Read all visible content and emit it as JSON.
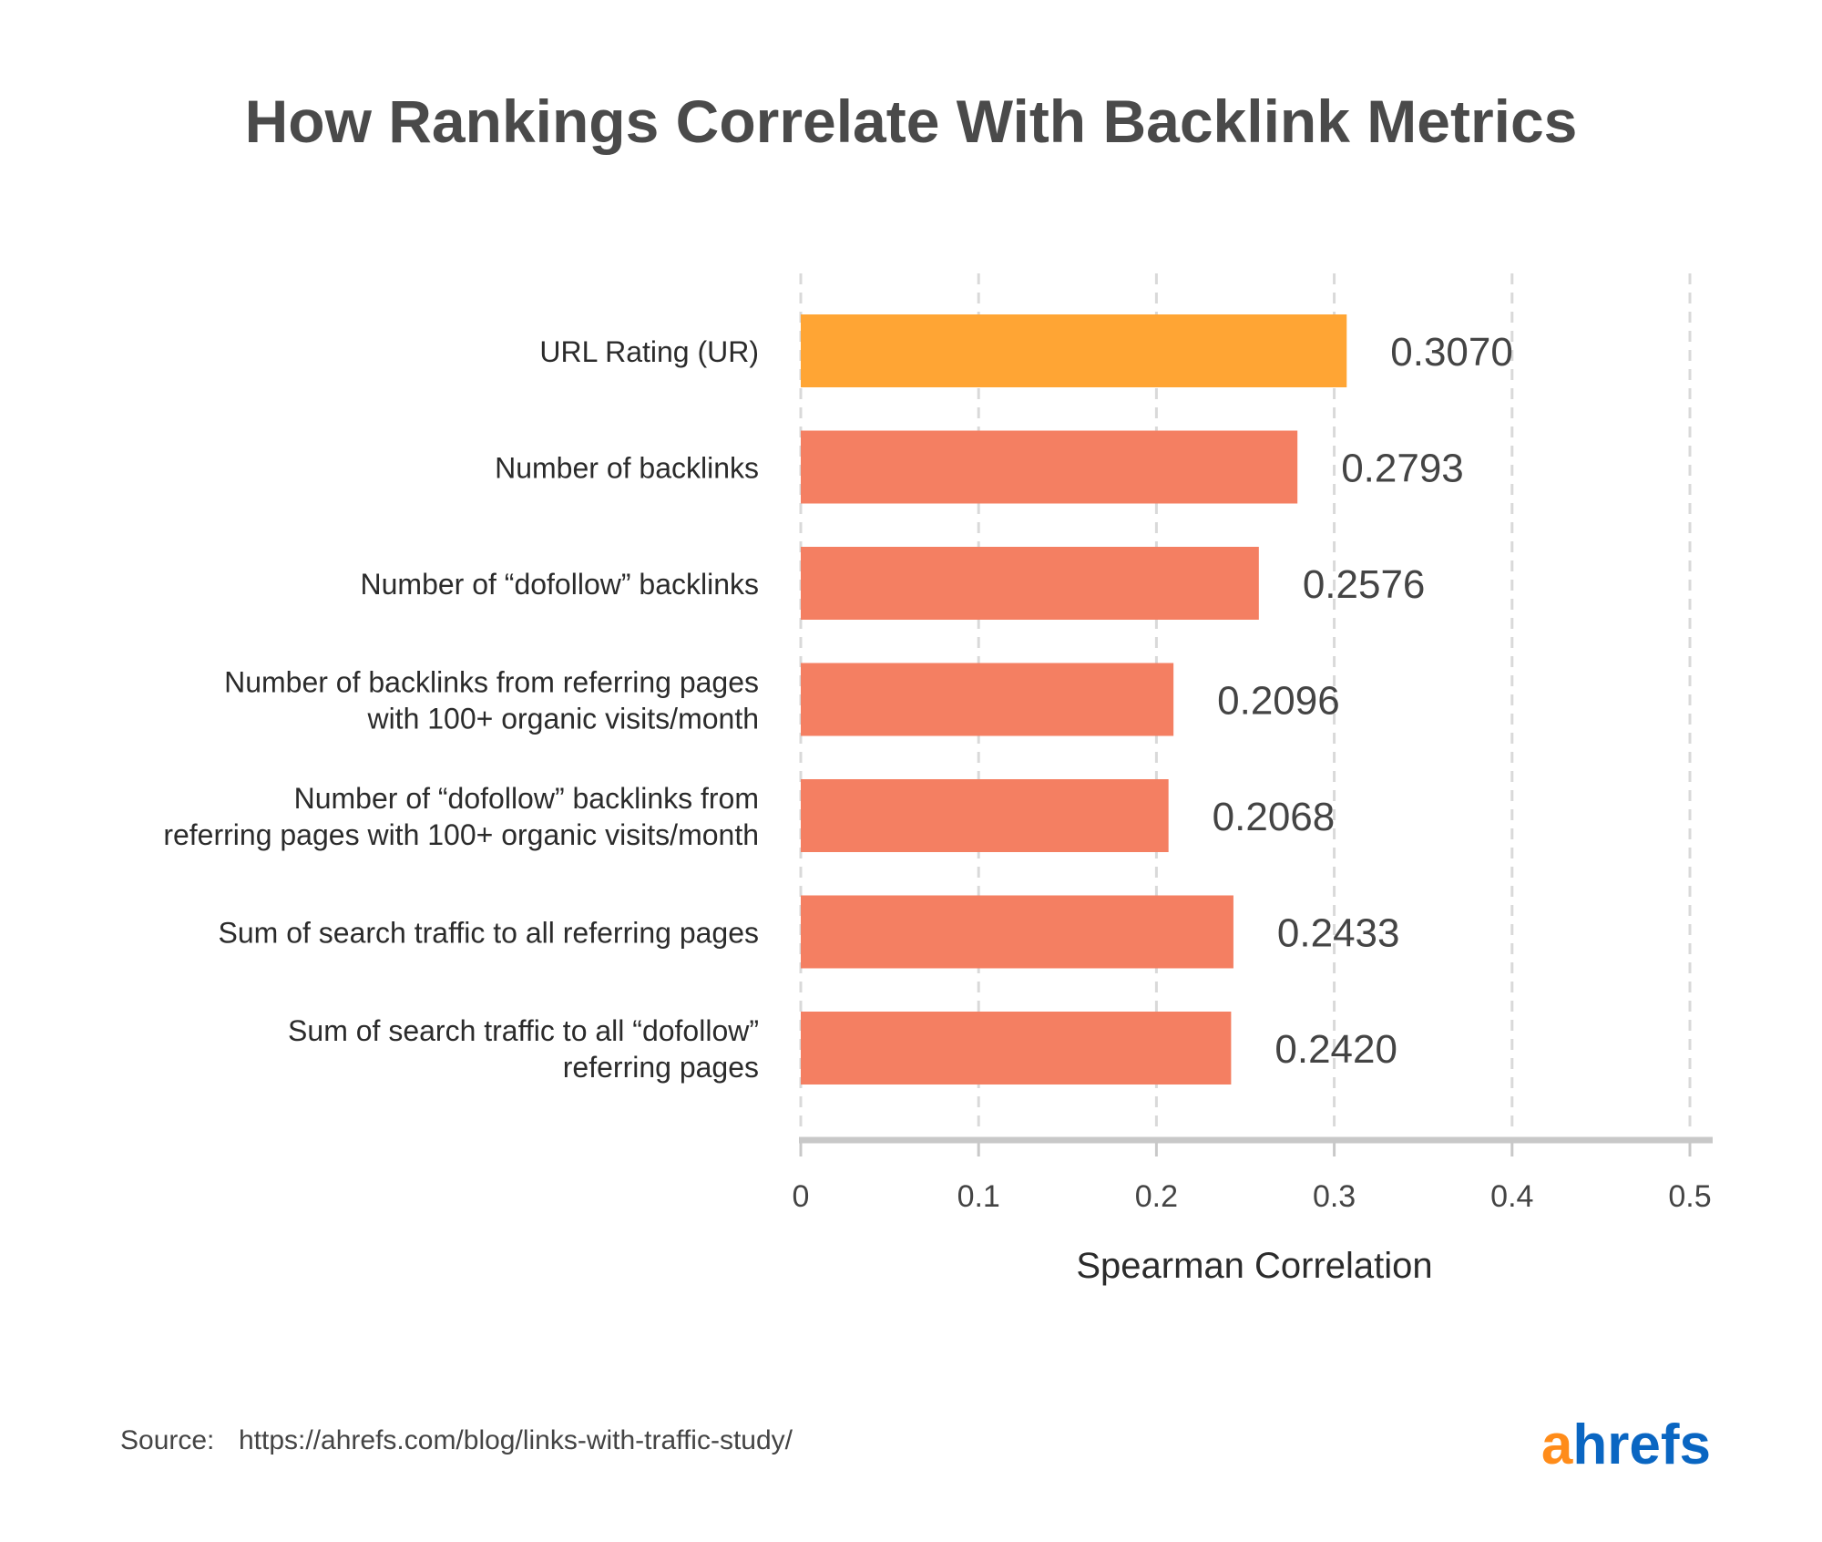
{
  "chart_data": {
    "type": "bar",
    "orientation": "horizontal",
    "title": "How Rankings Correlate With Backlink Metrics",
    "categories": [
      [
        "URL Rating (UR)"
      ],
      [
        "Number of backlinks"
      ],
      [
        "Number of “dofollow” backlinks"
      ],
      [
        "Number of backlinks from referring pages",
        "with 100+ organic visits/month"
      ],
      [
        "Number of “dofollow” backlinks from",
        "referring pages with 100+ organic visits/month"
      ],
      [
        "Sum of search traffic to all referring pages"
      ],
      [
        "Sum of search traffic to all “dofollow”",
        "referring pages"
      ]
    ],
    "values": [
      0.307,
      0.2793,
      0.2576,
      0.2096,
      0.2068,
      0.2433,
      0.242
    ],
    "value_labels": [
      "0.3070",
      "0.2793",
      "0.2576",
      "0.2096",
      "0.2068",
      "0.2433",
      "0.2420"
    ],
    "highlight_index": 0,
    "xlabel": "Spearman Correlation",
    "ylabel": "",
    "xlim": [
      0,
      0.5
    ],
    "xticks": [
      0,
      0.1,
      0.2,
      0.3,
      0.4,
      0.5
    ],
    "xtick_labels": [
      "0",
      "0.1",
      "0.2",
      "0.3",
      "0.4",
      "0.5"
    ],
    "grid": "vertical dashed",
    "colors": {
      "highlight": "#ffa534",
      "bar": "#f47f62",
      "grid": "#d9d9d9",
      "axis": "#c8c8c8"
    }
  },
  "footer": {
    "source_label": "Source:",
    "source_url": "https://ahrefs.com/blog/links-with-traffic-study/"
  },
  "logo": {
    "first_letter": "a",
    "rest": "hrefs",
    "first_color": "#ff8c1a",
    "rest_color": "#0a66c2"
  }
}
